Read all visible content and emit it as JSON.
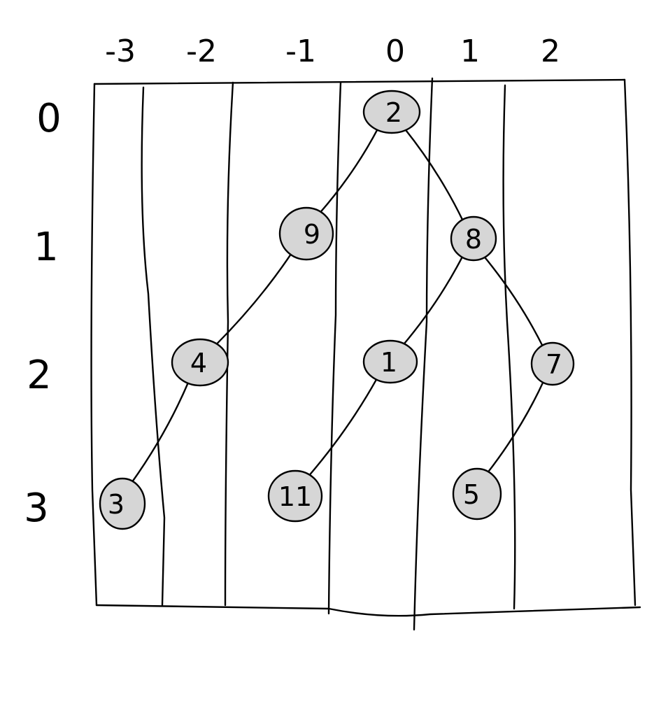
{
  "columns": [
    "-3",
    "-2",
    "-1",
    "0",
    "1",
    "2"
  ],
  "rows": [
    "0",
    "1",
    "2",
    "3"
  ],
  "nodes": [
    {
      "id": "n2",
      "label": "2",
      "col": 0,
      "row": 0
    },
    {
      "id": "n9",
      "label": "9",
      "col": -1,
      "row": 1
    },
    {
      "id": "n8",
      "label": "8",
      "col": 1,
      "row": 1
    },
    {
      "id": "n4",
      "label": "4",
      "col": -2,
      "row": 2
    },
    {
      "id": "n1",
      "label": "1",
      "col": 0,
      "row": 2
    },
    {
      "id": "n7",
      "label": "7",
      "col": 2,
      "row": 2
    },
    {
      "id": "n3",
      "label": "3",
      "col": -3,
      "row": 3
    },
    {
      "id": "n11",
      "label": "11",
      "col": -1,
      "row": 3
    },
    {
      "id": "n5",
      "label": "5",
      "col": 1,
      "row": 3
    }
  ],
  "edges": [
    {
      "from": "n2",
      "to": "n9"
    },
    {
      "from": "n2",
      "to": "n8"
    },
    {
      "from": "n9",
      "to": "n4"
    },
    {
      "from": "n8",
      "to": "n1"
    },
    {
      "from": "n8",
      "to": "n7"
    },
    {
      "from": "n4",
      "to": "n3"
    },
    {
      "from": "n1",
      "to": "n11"
    },
    {
      "from": "n7",
      "to": "n5"
    }
  ],
  "colors": {
    "ink": "#000000",
    "node_fill": "#d6d6d6",
    "background": "#ffffff"
  }
}
